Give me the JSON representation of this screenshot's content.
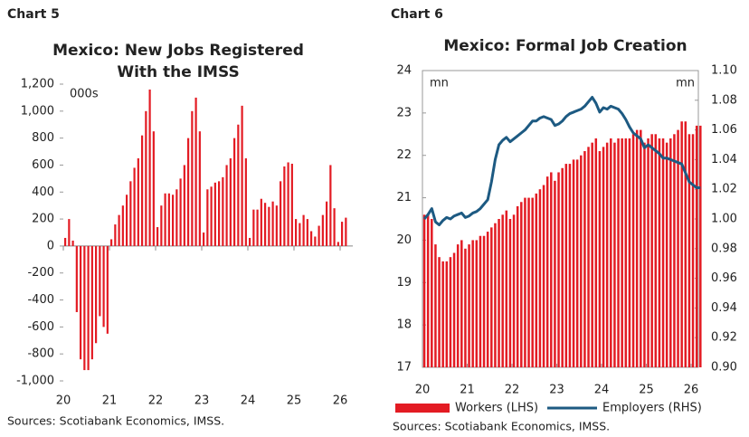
{
  "chart_data": [
    {
      "type": "bar",
      "chart_label": "Chart 5",
      "title": [
        "Mexico: New Jobs Registered",
        "With the IMSS"
      ],
      "unit_label": "000s",
      "source": "Sources: Scotiabank Economics, IMSS.",
      "categories": [
        "20",
        null,
        null,
        null,
        null,
        null,
        null,
        null,
        null,
        null,
        null,
        null,
        "21",
        null,
        null,
        null,
        null,
        null,
        null,
        null,
        null,
        null,
        null,
        null,
        "22",
        null,
        null,
        null,
        null,
        null,
        null,
        null,
        null,
        null,
        null,
        null,
        "23",
        null,
        null,
        null,
        null,
        null,
        null,
        null,
        null,
        null,
        null,
        null,
        "24",
        null,
        null,
        null,
        null,
        null,
        null,
        null,
        null,
        null,
        null,
        null,
        "25",
        null,
        null,
        null,
        null,
        null,
        null,
        null,
        null,
        null,
        null,
        null,
        "26",
        null
      ],
      "values": [
        60,
        200,
        40,
        -490,
        -840,
        -920,
        -920,
        -840,
        -720,
        -520,
        -600,
        -650,
        50,
        160,
        230,
        300,
        380,
        480,
        580,
        650,
        820,
        1000,
        1160,
        850,
        140,
        300,
        390,
        390,
        380,
        420,
        500,
        600,
        800,
        1000,
        1100,
        850,
        100,
        420,
        440,
        470,
        480,
        510,
        600,
        650,
        800,
        900,
        1040,
        650,
        60,
        270,
        270,
        350,
        320,
        290,
        330,
        300,
        480,
        590,
        620,
        610,
        200,
        170,
        230,
        200,
        110,
        70,
        150,
        230,
        330,
        600,
        280,
        30,
        180,
        210
      ],
      "color": "#e31b23",
      "ylim": [
        -1000,
        1200
      ],
      "yticks": [
        {
          "value": -1000,
          "label": "-1,000"
        },
        -800,
        -600,
        -400,
        -200,
        0,
        200,
        400,
        600,
        800,
        {
          "value": 1000,
          "label": "1,000"
        },
        {
          "value": 1200,
          "label": "1,200"
        }
      ]
    },
    {
      "type": "combo",
      "chart_label": "Chart 6",
      "title": "Mexico: Formal Job Creation",
      "y_unit": "mn",
      "y2_unit": "mn",
      "source": "Sources: Scotiabank Economics, IMSS.",
      "categories": [
        "20",
        null,
        null,
        null,
        null,
        null,
        null,
        null,
        null,
        null,
        null,
        null,
        "21",
        null,
        null,
        null,
        null,
        null,
        null,
        null,
        null,
        null,
        null,
        null,
        "22",
        null,
        null,
        null,
        null,
        null,
        null,
        null,
        null,
        null,
        null,
        null,
        "23",
        null,
        null,
        null,
        null,
        null,
        null,
        null,
        null,
        null,
        null,
        null,
        "24",
        null,
        null,
        null,
        null,
        null,
        null,
        null,
        null,
        null,
        null,
        null,
        "25",
        null,
        null,
        null,
        null,
        null,
        null,
        null,
        null,
        null,
        null,
        null,
        "26",
        null,
        null
      ],
      "series": [
        {
          "name": "Workers (LHS)",
          "type": "bar",
          "color": "#e31b23",
          "values": [
            20.6,
            20.6,
            20.5,
            19.9,
            19.6,
            19.5,
            19.5,
            19.6,
            19.7,
            19.9,
            20.0,
            19.8,
            19.9,
            20.0,
            20.0,
            20.1,
            20.1,
            20.2,
            20.3,
            20.4,
            20.5,
            20.6,
            20.7,
            20.5,
            20.6,
            20.8,
            20.9,
            21.0,
            21.0,
            21.0,
            21.1,
            21.2,
            21.3,
            21.5,
            21.6,
            21.4,
            21.6,
            21.7,
            21.8,
            21.8,
            21.9,
            21.9,
            22.0,
            22.1,
            22.2,
            22.3,
            22.4,
            22.1,
            22.2,
            22.3,
            22.4,
            22.3,
            22.4,
            22.4,
            22.4,
            22.4,
            22.5,
            22.6,
            22.6,
            22.3,
            22.4,
            22.5,
            22.5,
            22.4,
            22.4,
            22.3,
            22.4,
            22.5,
            22.6,
            22.8,
            22.8,
            22.5,
            22.5,
            22.7,
            22.7
          ]
        },
        {
          "name": "Employers (RHS)",
          "type": "line",
          "axis": "y2",
          "color": "#1d5a82",
          "values": [
            1.0,
            1.003,
            1.007,
            0.998,
            0.996,
            0.999,
            1.001,
            1.0,
            1.002,
            1.003,
            1.004,
            1.001,
            1.002,
            1.004,
            1.005,
            1.007,
            1.01,
            1.013,
            1.025,
            1.04,
            1.05,
            1.053,
            1.055,
            1.052,
            1.054,
            1.056,
            1.058,
            1.06,
            1.063,
            1.066,
            1.066,
            1.068,
            1.069,
            1.068,
            1.067,
            1.063,
            1.064,
            1.066,
            1.069,
            1.071,
            1.072,
            1.073,
            1.074,
            1.076,
            1.079,
            1.082,
            1.078,
            1.072,
            1.075,
            1.074,
            1.076,
            1.075,
            1.074,
            1.071,
            1.067,
            1.062,
            1.058,
            1.056,
            1.054,
            1.048,
            1.05,
            1.048,
            1.046,
            1.044,
            1.041,
            1.041,
            1.04,
            1.039,
            1.038,
            1.037,
            1.031,
            1.025,
            1.023,
            1.021,
            1.021
          ]
        }
      ],
      "ylim": [
        17,
        24
      ],
      "yticks": [
        17,
        18,
        19,
        20,
        21,
        22,
        23,
        24
      ],
      "y2lim": [
        0.9,
        1.1
      ],
      "y2ticks": [
        {
          "value": 0.9,
          "label": "0.90"
        },
        {
          "value": 0.92,
          "label": "0.92"
        },
        {
          "value": 0.94,
          "label": "0.94"
        },
        {
          "value": 0.96,
          "label": "0.96"
        },
        {
          "value": 0.98,
          "label": "0.98"
        },
        {
          "value": 1.0,
          "label": "1.00"
        },
        {
          "value": 1.02,
          "label": "1.02"
        },
        {
          "value": 1.04,
          "label": "1.04"
        },
        {
          "value": 1.06,
          "label": "1.06"
        },
        {
          "value": 1.08,
          "label": "1.08"
        },
        {
          "value": 1.1,
          "label": "1.10"
        }
      ]
    }
  ]
}
